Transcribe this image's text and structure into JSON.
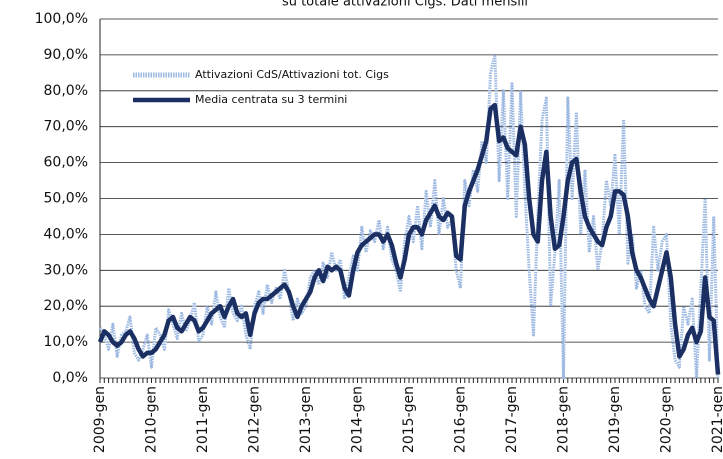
{
  "chart_data": {
    "type": "line",
    "title": "su totale attivazioni Cigs. Dati mensili",
    "categories": [
      "2009-gen",
      null,
      null,
      null,
      null,
      null,
      null,
      null,
      null,
      null,
      null,
      null,
      "2010-gen",
      null,
      null,
      null,
      null,
      null,
      null,
      null,
      null,
      null,
      null,
      null,
      "2011-gen",
      null,
      null,
      null,
      null,
      null,
      null,
      null,
      null,
      null,
      null,
      null,
      "2012-gen",
      null,
      null,
      null,
      null,
      null,
      null,
      null,
      null,
      null,
      null,
      null,
      "2013-gen",
      null,
      null,
      null,
      null,
      null,
      null,
      null,
      null,
      null,
      null,
      null,
      "2014-gen",
      null,
      null,
      null,
      null,
      null,
      null,
      null,
      null,
      null,
      null,
      null,
      "2015-gen",
      null,
      null,
      null,
      null,
      null,
      null,
      null,
      null,
      null,
      null,
      null,
      "2016-gen",
      null,
      null,
      null,
      null,
      null,
      null,
      null,
      null,
      null,
      null,
      null,
      "2017-gen",
      null,
      null,
      null,
      null,
      null,
      null,
      null,
      null,
      null,
      null,
      null,
      "2018-gen",
      null,
      null,
      null,
      null,
      null,
      null,
      null,
      null,
      null,
      null,
      null,
      "2019-gen",
      null,
      null,
      null,
      null,
      null,
      null,
      null,
      null,
      null,
      null,
      null,
      "2020-gen",
      null,
      null,
      null,
      null,
      null,
      null,
      null,
      null,
      null,
      null,
      null,
      "2021-gen"
    ],
    "series": [
      {
        "name": "Attivazioni CdS/Attivazioni tot. Cigs",
        "color": "#9db9e2",
        "values": [
          14,
          12,
          8,
          15,
          6,
          12,
          13,
          17,
          7,
          5,
          8,
          12,
          3,
          14,
          12,
          8,
          19,
          15,
          11,
          18,
          13,
          16,
          21,
          10,
          12,
          20,
          15,
          24,
          17,
          14,
          25,
          18,
          16,
          20,
          12,
          8,
          20,
          24,
          18,
          26,
          21,
          25,
          22,
          30,
          24,
          16,
          22,
          18,
          20,
          28,
          30,
          26,
          32,
          28,
          35,
          30,
          33,
          22,
          28,
          34,
          30,
          42,
          35,
          41,
          38,
          44,
          36,
          42,
          33,
          30,
          24,
          38,
          45,
          38,
          48,
          36,
          52,
          42,
          55,
          40,
          50,
          42,
          44,
          30,
          25,
          55,
          48,
          58,
          52,
          66,
          60,
          85,
          90,
          55,
          80,
          50,
          82,
          45,
          80,
          52,
          30,
          12,
          45,
          72,
          78,
          20,
          35,
          55,
          0,
          78,
          50,
          74,
          40,
          58,
          35,
          45,
          30,
          38,
          55,
          48,
          62,
          40,
          72,
          32,
          40,
          25,
          30,
          20,
          18,
          42,
          30,
          38,
          40,
          15,
          5,
          3,
          20,
          15,
          22,
          0,
          25,
          50,
          5,
          45,
          0
        ]
      },
      {
        "name": "Media centrata su 3 termini",
        "color": "#1b2f63",
        "values": [
          10,
          13,
          12,
          10,
          9,
          10,
          12,
          13,
          11,
          8,
          6,
          7,
          7,
          8,
          10,
          12,
          16,
          17,
          14,
          13,
          15,
          17,
          16,
          13,
          14,
          16,
          18,
          19,
          20,
          17,
          20,
          22,
          18,
          17,
          18,
          12,
          18,
          21,
          22,
          22,
          23,
          24,
          25,
          26,
          24,
          20,
          17,
          20,
          22,
          24,
          28,
          30,
          27,
          31,
          30,
          31,
          30,
          25,
          23,
          30,
          35,
          37,
          38,
          39,
          40,
          40,
          38,
          40,
          37,
          32,
          28,
          33,
          40,
          42,
          42,
          40,
          44,
          46,
          48,
          45,
          44,
          46,
          45,
          34,
          33,
          48,
          52,
          55,
          58,
          62,
          66,
          75,
          76,
          66,
          67,
          64,
          63,
          62,
          70,
          65,
          50,
          40,
          38,
          55,
          63,
          45,
          36,
          37,
          45,
          55,
          60,
          61,
          52,
          45,
          42,
          40,
          38,
          37,
          42,
          45,
          52,
          52,
          51,
          45,
          35,
          30,
          28,
          25,
          22,
          20,
          25,
          30,
          35,
          28,
          15,
          6,
          8,
          12,
          14,
          10,
          13,
          28,
          17,
          16,
          1
        ]
      }
    ],
    "ylim": [
      0,
      100
    ],
    "yticks": [
      {
        "value": 0,
        "label": "0,0%"
      },
      {
        "value": 10,
        "label": "10,0%"
      },
      {
        "value": 20,
        "label": "20,0%"
      },
      {
        "value": 30,
        "label": "30,0%"
      },
      {
        "value": 40,
        "label": "40,0%"
      },
      {
        "value": 50,
        "label": "50,0%"
      },
      {
        "value": 60,
        "label": "60,0%"
      },
      {
        "value": 70,
        "label": "70,0%"
      },
      {
        "value": 80,
        "label": "80,0%"
      },
      {
        "value": 90,
        "label": "90,0%"
      },
      {
        "value": 100,
        "label": "100,0%"
      }
    ],
    "grid": true,
    "legend": "upper left"
  }
}
